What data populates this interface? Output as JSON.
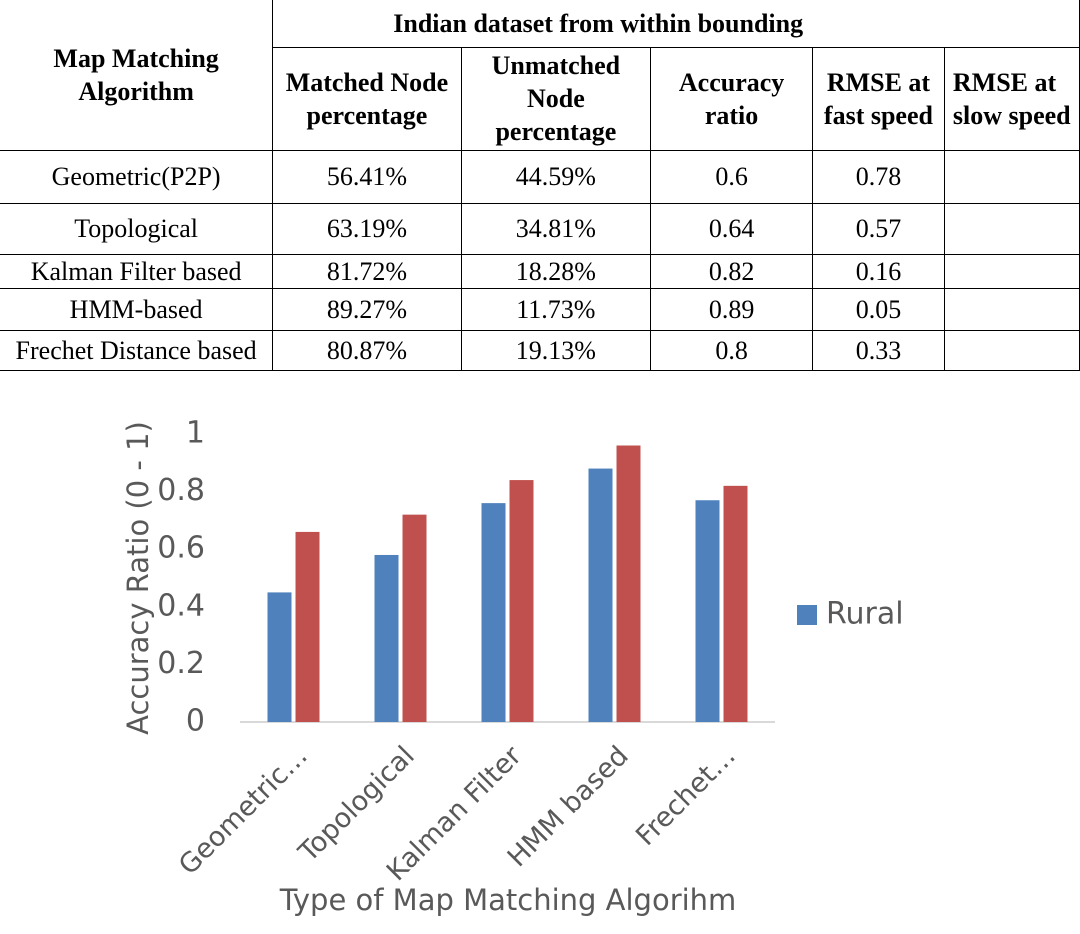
{
  "table": {
    "corner": "Map Matching Algorithm",
    "group_header": "Indian dataset from within bounding",
    "columns": [
      "Matched Node percentage",
      "Unmatched Node percentage",
      "Accuracy ratio",
      "RMSE at fast speed",
      "RMSE at slow speed"
    ],
    "rows": [
      [
        "Geometric(P2P)",
        "56.41%",
        "44.59%",
        "0.6",
        "0.78",
        ""
      ],
      [
        "Topological",
        "63.19%",
        "34.81%",
        "0.64",
        "0.57",
        ""
      ],
      [
        "Kalman Filter based",
        "81.72%",
        "18.28%",
        "0.82",
        "0.16",
        ""
      ],
      [
        "HMM-based",
        "89.27%",
        "11.73%",
        "0.89",
        "0.05",
        ""
      ],
      [
        "Frechet Distance based",
        "80.87%",
        "19.13%",
        "0.8",
        "0.33",
        ""
      ]
    ]
  },
  "chart_data": {
    "type": "bar",
    "ylabel": "Accuracy Ratio (0 - 1)",
    "xlabel": "Type of Map Matching Algorihm",
    "categories": [
      "Geometric…",
      "Topological",
      "Kalman Filter",
      "HMM based",
      "Frechet…"
    ],
    "series": [
      {
        "name": "Rural",
        "color": "#4f81bd",
        "values": [
          0.45,
          0.58,
          0.76,
          0.88,
          0.77
        ]
      },
      {
        "color": "#c0504d",
        "values": [
          0.66,
          0.72,
          0.84,
          0.96,
          0.82
        ]
      }
    ],
    "ylim": [
      0,
      1
    ],
    "yticks": [
      0,
      0.2,
      0.4,
      0.6,
      0.8,
      1
    ]
  }
}
